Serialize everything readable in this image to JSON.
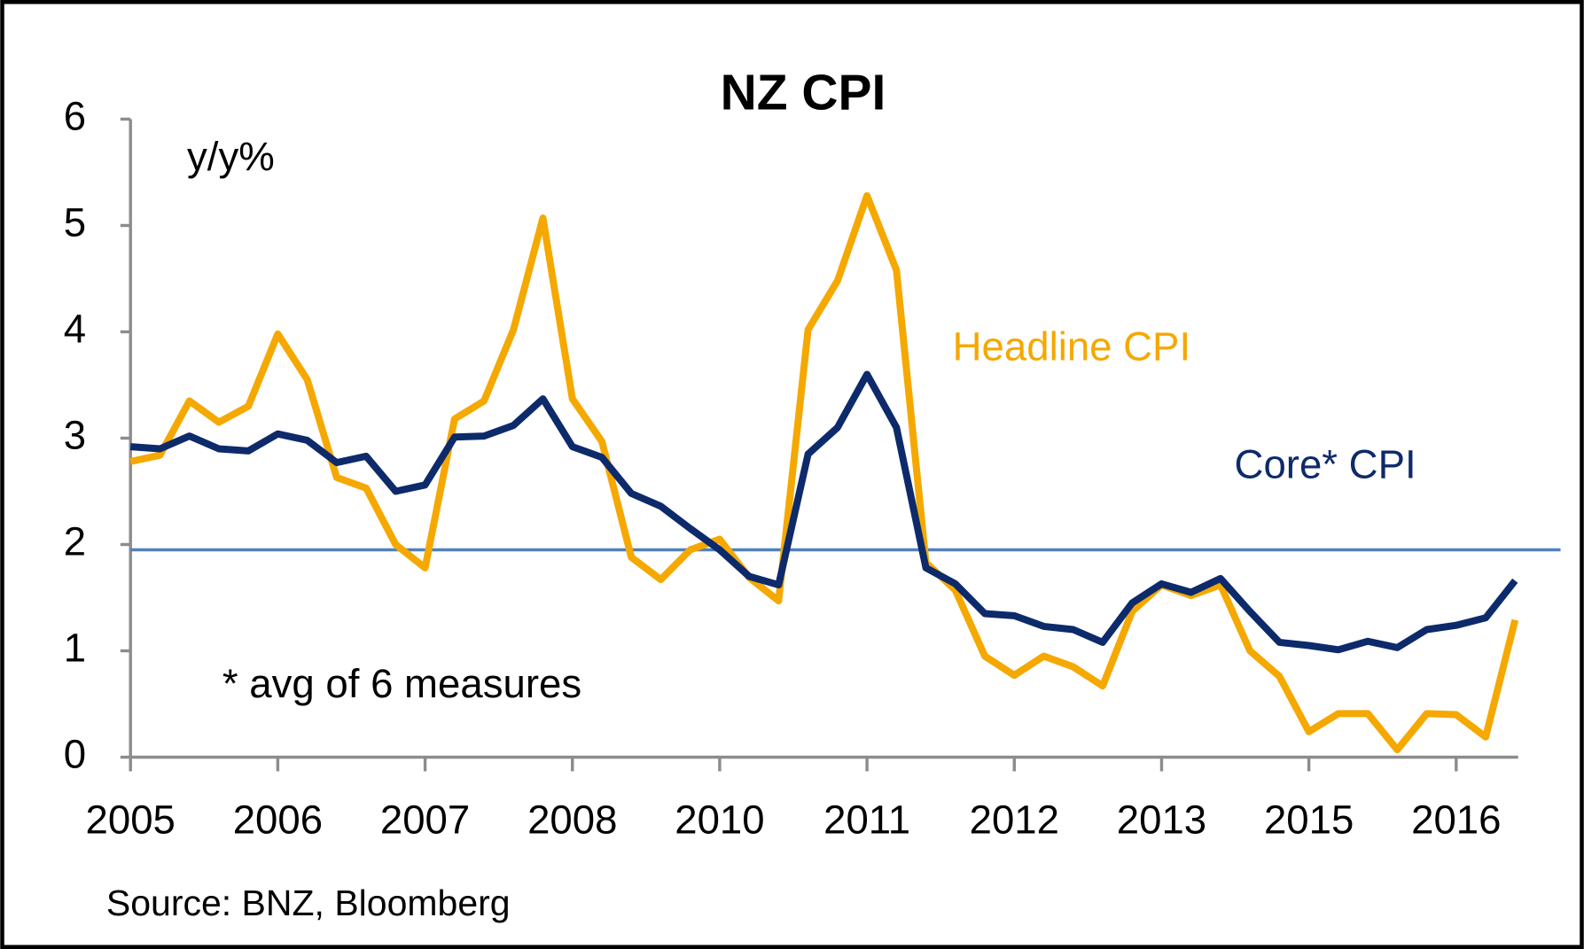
{
  "chart_data": {
    "type": "line",
    "title": "NZ CPI",
    "y_label": "y/y%",
    "annotations": [
      "* avg of 6 measures"
    ],
    "source": "Source: BNZ, Bloomberg",
    "categories": [
      "2005",
      null,
      null,
      null,
      null,
      "2006",
      null,
      null,
      null,
      null,
      "2007",
      null,
      null,
      null,
      null,
      "2008",
      null,
      null,
      null,
      null,
      "2010",
      null,
      null,
      null,
      null,
      "2011",
      null,
      null,
      null,
      null,
      "2012",
      null,
      null,
      null,
      null,
      "2013",
      null,
      null,
      null,
      null,
      "2015",
      null,
      null,
      null,
      null,
      "2016",
      null,
      null
    ],
    "series": [
      {
        "name": "Headline CPI",
        "color": "#f5a800",
        "values": [
          2.78,
          2.84,
          3.35,
          3.15,
          3.3,
          3.98,
          3.55,
          2.63,
          2.53,
          2.0,
          1.78,
          3.18,
          3.35,
          4.02,
          5.07,
          3.37,
          2.97,
          1.88,
          1.67,
          1.95,
          2.05,
          1.69,
          1.47,
          4.02,
          4.48,
          5.28,
          4.58,
          1.83,
          1.57,
          0.95,
          0.77,
          0.95,
          0.85,
          0.67,
          1.37,
          1.62,
          1.52,
          1.62,
          1.0,
          0.76,
          0.24,
          0.41,
          0.41,
          0.07,
          0.41,
          0.4,
          0.19,
          1.29
        ]
      },
      {
        "name": "Core* CPI",
        "color": "#0d2a6b",
        "values": [
          2.92,
          2.9,
          3.02,
          2.9,
          2.88,
          3.04,
          2.98,
          2.77,
          2.83,
          2.5,
          2.56,
          3.01,
          3.02,
          3.12,
          3.37,
          2.92,
          2.82,
          2.48,
          2.36,
          2.15,
          1.95,
          1.7,
          1.62,
          2.85,
          3.1,
          3.6,
          3.1,
          1.78,
          1.63,
          1.35,
          1.33,
          1.23,
          1.2,
          1.08,
          1.45,
          1.63,
          1.55,
          1.68,
          1.37,
          1.08,
          1.05,
          1.01,
          1.09,
          1.03,
          1.2,
          1.24,
          1.31,
          1.66
        ]
      }
    ],
    "reference_line": {
      "value": 1.95,
      "color": "#4f81bd"
    },
    "ylim": [
      0,
      6
    ],
    "yticks": [
      0,
      1,
      2,
      3,
      4,
      5,
      6
    ],
    "grid": false
  }
}
